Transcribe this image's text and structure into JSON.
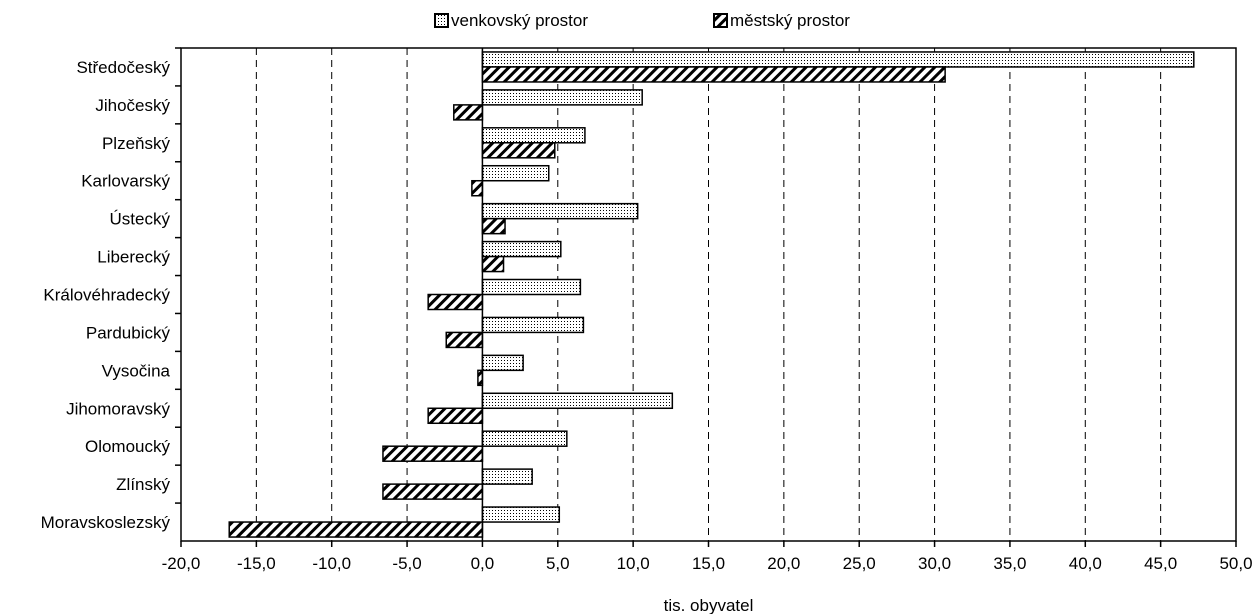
{
  "chart_data": {
    "type": "bar",
    "orientation": "horizontal",
    "categories": [
      "Středočeský",
      "Jihočeský",
      "Plzeňský",
      "Karlovarský",
      "Ústecký",
      "Liberecký",
      "Královéhradecký",
      "Pardubický",
      "Vysočina",
      "Jihomoravský",
      "Olomoucký",
      "Zlínský",
      "Moravskoslezský"
    ],
    "series": [
      {
        "name": "venkovský prostor",
        "pattern": "dots",
        "values": [
          47.2,
          10.6,
          6.8,
          4.4,
          10.3,
          5.2,
          6.5,
          6.7,
          2.7,
          12.6,
          5.6,
          3.3,
          5.1
        ]
      },
      {
        "name": "městský prostor",
        "pattern": "diagonal-hatch",
        "values": [
          30.7,
          -1.9,
          4.8,
          -0.7,
          1.5,
          1.4,
          -3.6,
          -2.4,
          -0.3,
          -3.6,
          -6.6,
          -6.6,
          -16.8
        ]
      }
    ],
    "xlabel": "tis. obyvatel",
    "ylabel": "",
    "xlim": [
      -20,
      50
    ],
    "xticks": [
      -20,
      -15,
      -10,
      -5,
      0,
      5,
      10,
      15,
      20,
      25,
      30,
      35,
      40,
      45,
      50
    ],
    "xtick_labels": [
      "-20,0",
      "-15,0",
      "-10,0",
      "-5,0",
      "0,0",
      "5,0",
      "10,0",
      "15,0",
      "20,0",
      "25,0",
      "30,0",
      "35,0",
      "40,0",
      "45,0",
      "50,0"
    ],
    "grid": "vertical dashed",
    "legend_position": "top",
    "colors": {
      "bar_fill": "#ffffff",
      "bar_stroke": "#000000",
      "pattern_ink": "#000000",
      "grid": "#000000"
    }
  }
}
